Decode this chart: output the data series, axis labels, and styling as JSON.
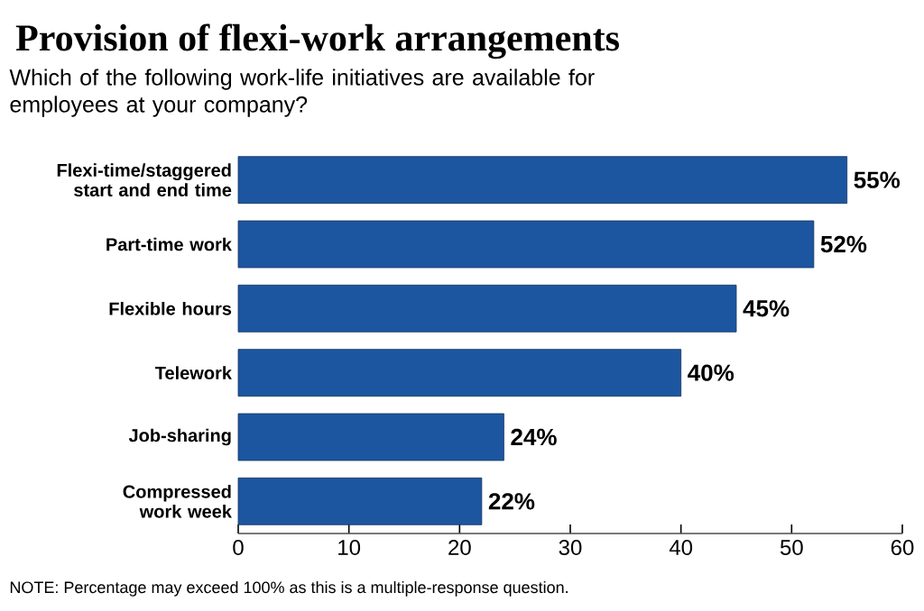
{
  "chart_data": {
    "type": "bar",
    "orientation": "horizontal",
    "title": "Provision of flexi-work arrangements",
    "subtitle": "Which of the following work-life initiatives are available for employees at your company?",
    "categories": [
      "Flexi-time/staggered start and end time",
      "Part-time work",
      "Flexible hours",
      "Telework",
      "Job-sharing",
      "Compressed work week"
    ],
    "values": [
      55,
      52,
      45,
      40,
      24,
      22
    ],
    "value_labels": [
      "55%",
      "52%",
      "45%",
      "40%",
      "24%",
      "22%"
    ],
    "color": "#1d56a0",
    "xlim": [
      0,
      60
    ],
    "xticks": [
      0,
      10,
      20,
      30,
      40,
      50,
      60
    ],
    "annotations": [
      "NOTE: Percentage may exceed 100% as this is a multiple-response question."
    ]
  }
}
